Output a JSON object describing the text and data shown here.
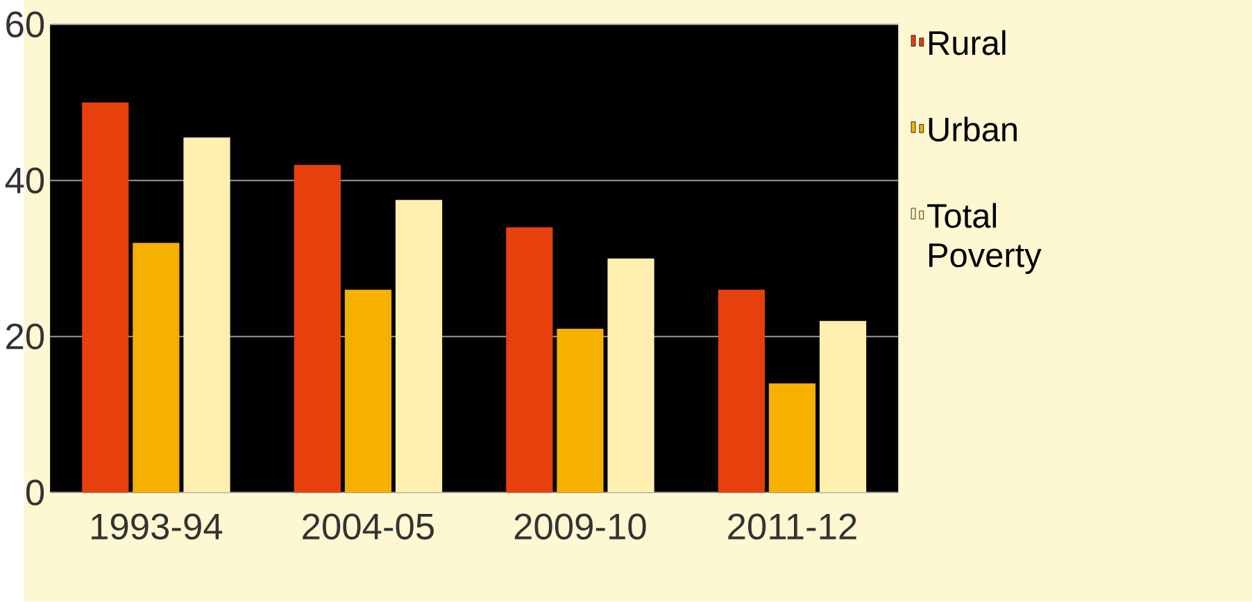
{
  "chart_data": {
    "type": "bar",
    "categories": [
      "1993-94",
      "2004-05",
      "2009-10",
      "2011-12"
    ],
    "series": [
      {
        "name": "Rural",
        "color": "#e8400c",
        "values": [
          50,
          42,
          34,
          26
        ]
      },
      {
        "name": "Urban",
        "color": "#f5b000",
        "values": [
          32,
          26,
          21,
          14
        ]
      },
      {
        "name": "Total Poverty",
        "color": "#fff0b0",
        "values": [
          45.5,
          37.5,
          30,
          22
        ]
      }
    ],
    "ylim": [
      0,
      60
    ],
    "yticks": [
      0,
      20,
      40,
      60
    ],
    "grid": "y",
    "legend": "right"
  }
}
